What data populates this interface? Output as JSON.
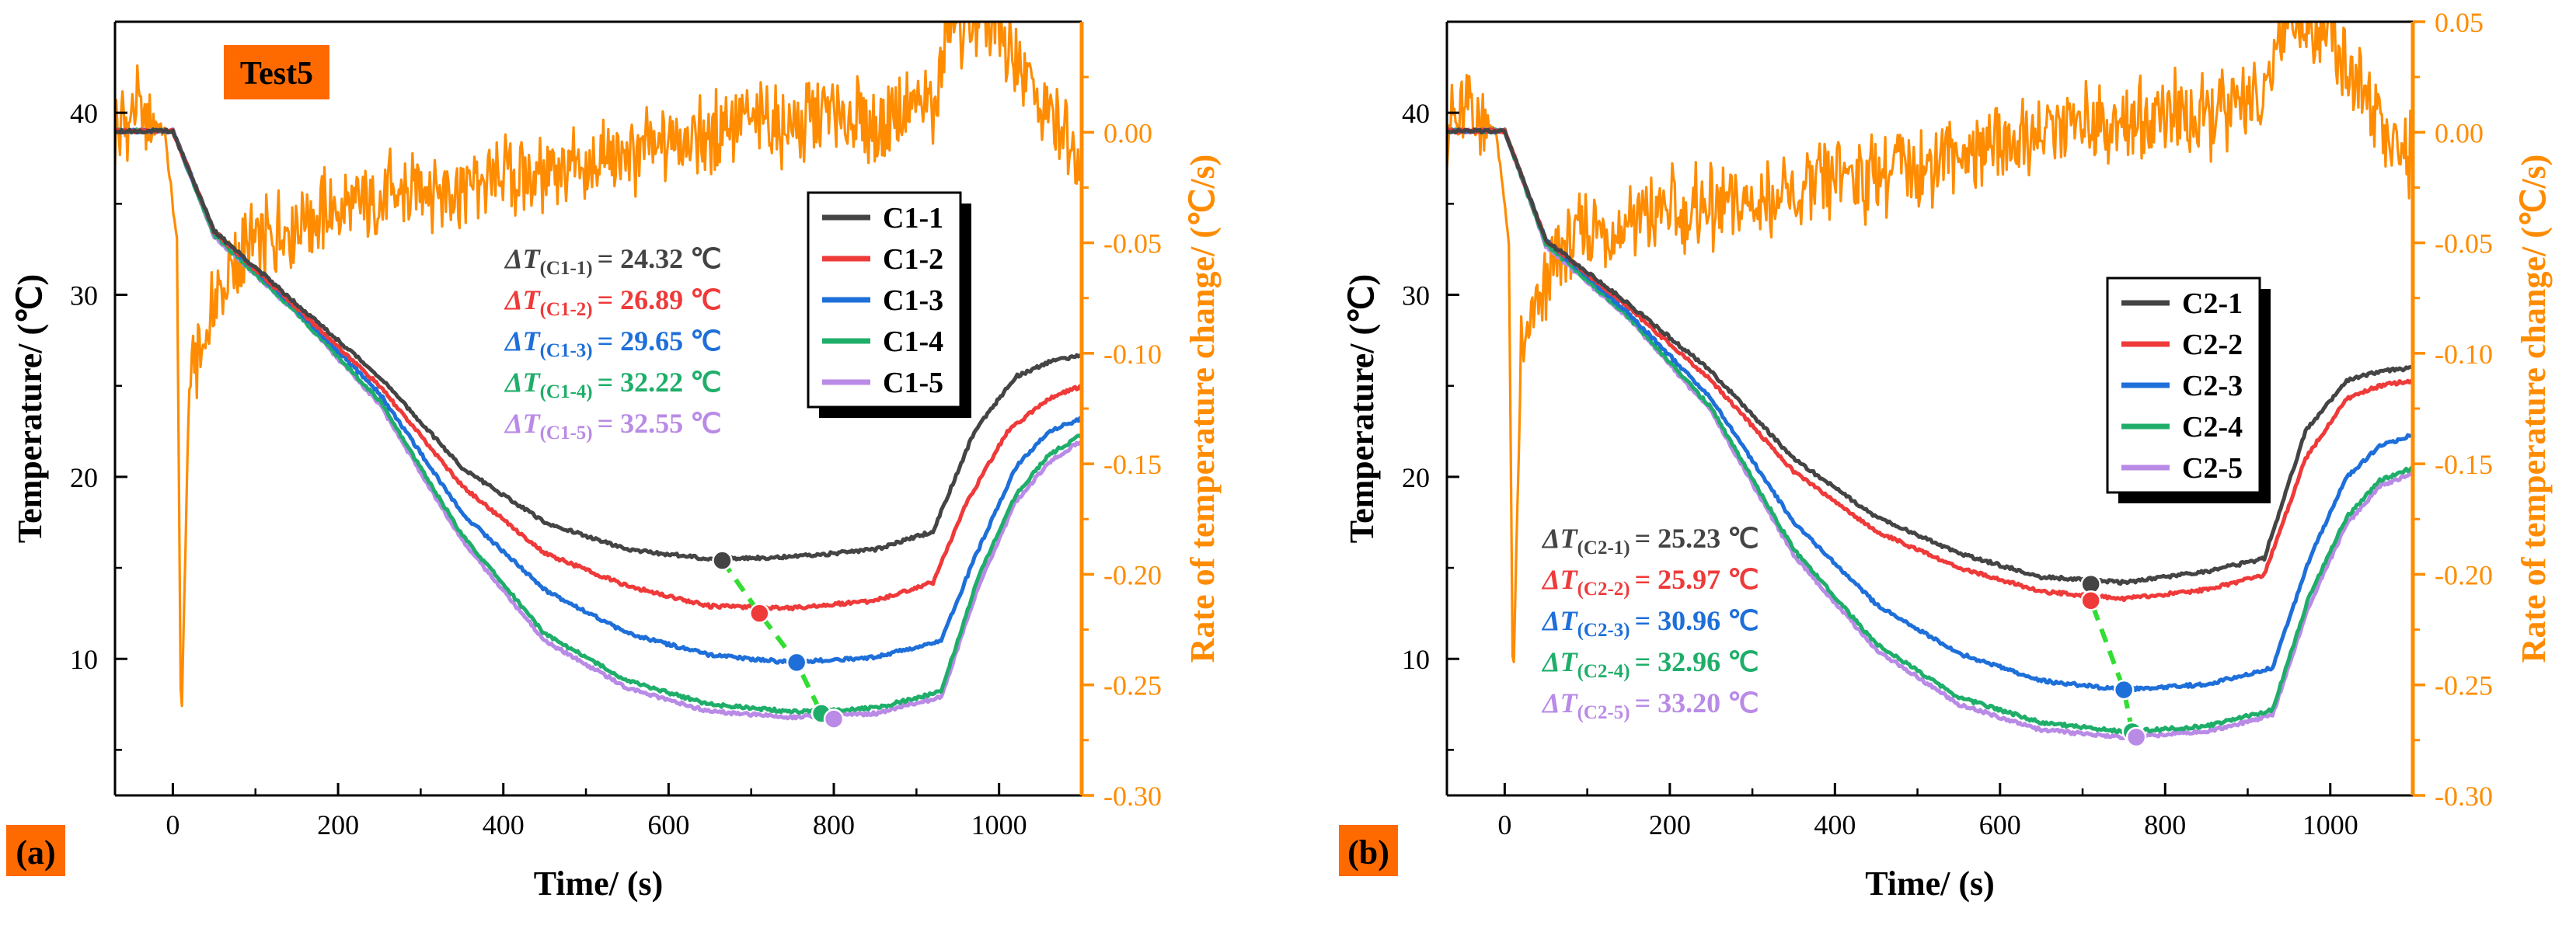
{
  "colors": {
    "axis": "#000000",
    "rate": "#ff8c00",
    "c1": "#444444",
    "c2": "#ef3a3a",
    "c3": "#1e6fd9",
    "c4": "#1fae6a",
    "c5": "#b98ae6",
    "trend": "#33dd33",
    "tag": "#ff6a00"
  },
  "chart_data": [
    {
      "type": "line",
      "panel_label": "(a)",
      "tag": "Test5",
      "xlabel": "Time/ (s)",
      "ylabel": "Temperature/ (℃)",
      "y2label": "Rate of temperature change/ (℃/s)",
      "xlim": [
        -70,
        1100
      ],
      "ylim": [
        2.5,
        45
      ],
      "y2lim": [
        -0.3,
        0.05
      ],
      "xticks": [
        0,
        200,
        400,
        600,
        800,
        1000
      ],
      "yticks": [
        10,
        20,
        30,
        40
      ],
      "y2ticks": [
        -0.3,
        -0.25,
        -0.2,
        -0.15,
        -0.1,
        -0.05,
        0.0
      ],
      "x_tick_labels": [
        "0",
        "200",
        "400",
        "600",
        "800",
        "1000"
      ],
      "y_tick_labels": [
        "10",
        "20",
        "30",
        "40"
      ],
      "y2_tick_labels": [
        "-0.30",
        "-0.25",
        "-0.20",
        "-0.15",
        "-0.10",
        "-0.05",
        "0.00"
      ],
      "grid": false,
      "legend_position": "right",
      "series": [
        {
          "name": "C1-1",
          "x": [
            -70,
            0,
            50,
            150,
            250,
            350,
            450,
            550,
            650,
            750,
            850,
            920,
            970,
            1020,
            1060,
            1100
          ],
          "y": [
            39,
            39,
            33.5,
            29.5,
            25.5,
            20.5,
            17.5,
            16.0,
            15.5,
            15.6,
            16.0,
            17.0,
            22.5,
            25.5,
            26.3,
            26.7
          ]
        },
        {
          "name": "C1-2",
          "x": [
            -70,
            0,
            50,
            150,
            250,
            350,
            450,
            550,
            650,
            750,
            850,
            920,
            960,
            1010,
            1060,
            1100
          ],
          "y": [
            39,
            39,
            33.5,
            29.3,
            25.0,
            19.5,
            15.8,
            14.0,
            12.9,
            12.8,
            13.2,
            14.2,
            18.5,
            22.5,
            24.3,
            25.0
          ]
        },
        {
          "name": "C1-3",
          "x": [
            -70,
            0,
            50,
            150,
            250,
            350,
            450,
            550,
            650,
            750,
            850,
            930,
            970,
            1020,
            1060,
            1100
          ],
          "y": [
            39,
            39,
            33.5,
            29.2,
            24.6,
            18.0,
            13.8,
            11.4,
            10.2,
            9.8,
            10.1,
            11.0,
            15.5,
            20.5,
            22.5,
            23.2
          ]
        },
        {
          "name": "C1-4",
          "x": [
            -70,
            0,
            50,
            150,
            250,
            350,
            450,
            550,
            650,
            750,
            850,
            930,
            975,
            1020,
            1060,
            1100
          ],
          "y": [
            39,
            39,
            33.3,
            29.0,
            24.2,
            16.8,
            11.4,
            8.8,
            7.5,
            7.1,
            7.3,
            8.2,
            14.5,
            19.0,
            21.2,
            22.3
          ]
        },
        {
          "name": "C1-5",
          "x": [
            -70,
            0,
            50,
            150,
            250,
            350,
            450,
            550,
            650,
            750,
            850,
            930,
            975,
            1020,
            1060,
            1100
          ],
          "y": [
            39,
            39,
            33.2,
            29.0,
            24.0,
            16.5,
            11.0,
            8.4,
            7.1,
            6.8,
            7.0,
            7.9,
            14.0,
            18.6,
            20.8,
            22.0
          ]
        },
        {
          "name": "Rate",
          "axis": "right",
          "x": [
            -70,
            -40,
            -10,
            5,
            10,
            20,
            40,
            60,
            100,
            150,
            200,
            250,
            300,
            350,
            400,
            450,
            500,
            550,
            600,
            650,
            700,
            750,
            800,
            850,
            900,
            920,
            940,
            960,
            1000,
            1040,
            1070,
            1100
          ],
          "y": [
            0.0,
            0.01,
            0.0,
            -0.05,
            -0.275,
            -0.11,
            -0.09,
            -0.07,
            -0.05,
            -0.04,
            -0.035,
            -0.03,
            -0.025,
            -0.025,
            -0.02,
            -0.02,
            -0.015,
            -0.01,
            -0.005,
            0.0,
            0.005,
            0.0,
            0.01,
            0.0,
            0.015,
            0.01,
            0.05,
            0.05,
            0.045,
            0.02,
            0.0,
            -0.01
          ]
        }
      ],
      "delta_labels": [
        {
          "prefix": "ΔT",
          "sub": "(C1-1)",
          "value": "= 24.32 ℃"
        },
        {
          "prefix": "ΔT",
          "sub": "(C1-2)",
          "value": "= 26.89 ℃"
        },
        {
          "prefix": "ΔT",
          "sub": "(C1-3)",
          "value": "= 29.65 ℃"
        },
        {
          "prefix": "ΔT",
          "sub": "(C1-4)",
          "value": "= 32.22 ℃"
        },
        {
          "prefix": "ΔT",
          "sub": "(C1-5)",
          "value": "= 32.55 ℃"
        }
      ],
      "min_points": [
        {
          "x": 665,
          "y": 15.4
        },
        {
          "x": 710,
          "y": 12.5
        },
        {
          "x": 755,
          "y": 9.8
        },
        {
          "x": 785,
          "y": 7.0
        },
        {
          "x": 800,
          "y": 6.7
        }
      ]
    },
    {
      "type": "line",
      "panel_label": "(b)",
      "xlabel": "Time/ (s)",
      "ylabel": "Temperature/ (℃)",
      "y2label": "Rate of temperature change/ (℃/s)",
      "xlim": [
        -70,
        1100
      ],
      "ylim": [
        2.5,
        45
      ],
      "y2lim": [
        -0.3,
        0.05
      ],
      "xticks": [
        0,
        200,
        400,
        600,
        800,
        1000
      ],
      "yticks": [
        10,
        20,
        30,
        40
      ],
      "y2ticks": [
        -0.3,
        -0.25,
        -0.2,
        -0.15,
        -0.1,
        -0.05,
        0.0,
        0.05
      ],
      "x_tick_labels": [
        "0",
        "200",
        "400",
        "600",
        "800",
        "1000"
      ],
      "y_tick_labels": [
        "10",
        "20",
        "30",
        "40"
      ],
      "y2_tick_labels": [
        "-0.30",
        "-0.25",
        "-0.20",
        "-0.15",
        "-0.10",
        "-0.05",
        "0.00",
        "0.05"
      ],
      "grid": false,
      "legend_position": "right",
      "series": [
        {
          "name": "C2-1",
          "x": [
            -70,
            0,
            50,
            150,
            250,
            350,
            450,
            550,
            650,
            750,
            850,
            920,
            970,
            1020,
            1060,
            1100
          ],
          "y": [
            39,
            39,
            33.0,
            29.5,
            25.8,
            21.0,
            17.8,
            15.8,
            14.5,
            14.2,
            14.8,
            15.5,
            22.5,
            25.3,
            25.8,
            26.0
          ]
        },
        {
          "name": "C2-2",
          "x": [
            -70,
            0,
            50,
            150,
            250,
            350,
            450,
            550,
            650,
            750,
            850,
            920,
            970,
            1020,
            1060,
            1100
          ],
          "y": [
            39,
            39,
            33.0,
            29.3,
            25.3,
            20.3,
            17.0,
            15.0,
            13.7,
            13.3,
            13.8,
            14.6,
            21.0,
            24.3,
            25.0,
            25.3
          ]
        },
        {
          "name": "C2-3",
          "x": [
            -70,
            0,
            50,
            150,
            250,
            350,
            450,
            550,
            650,
            750,
            850,
            930,
            975,
            1020,
            1060,
            1100
          ],
          "y": [
            39,
            39,
            33.0,
            29.0,
            24.3,
            17.5,
            13.0,
            10.3,
            8.8,
            8.3,
            8.6,
            9.5,
            15.5,
            20.0,
            21.7,
            22.3
          ]
        },
        {
          "name": "C2-4",
          "x": [
            -70,
            0,
            50,
            150,
            250,
            350,
            450,
            550,
            650,
            750,
            850,
            930,
            975,
            1020,
            1060,
            1100
          ],
          "y": [
            39,
            39,
            32.8,
            28.8,
            23.8,
            16.0,
            10.8,
            7.9,
            6.5,
            6.0,
            6.3,
            7.2,
            13.5,
            17.8,
            19.8,
            20.5
          ]
        },
        {
          "name": "C2-5",
          "x": [
            -70,
            0,
            50,
            150,
            250,
            350,
            450,
            550,
            650,
            750,
            850,
            930,
            975,
            1020,
            1060,
            1100
          ],
          "y": [
            39,
            39,
            32.7,
            28.7,
            23.6,
            15.7,
            10.5,
            7.5,
            6.1,
            5.7,
            6.0,
            6.9,
            13.0,
            17.4,
            19.5,
            20.2
          ]
        },
        {
          "name": "Rate",
          "axis": "right",
          "x": [
            -70,
            -40,
            -10,
            5,
            10,
            20,
            40,
            60,
            100,
            150,
            200,
            250,
            300,
            350,
            400,
            450,
            500,
            550,
            600,
            650,
            700,
            750,
            800,
            850,
            900,
            920,
            940,
            960,
            1000,
            1040,
            1070,
            1100
          ],
          "y": [
            0.0,
            0.01,
            0.0,
            -0.05,
            -0.255,
            -0.1,
            -0.08,
            -0.06,
            -0.045,
            -0.04,
            -0.035,
            -0.035,
            -0.03,
            -0.03,
            -0.02,
            -0.02,
            -0.015,
            -0.01,
            -0.005,
            0.0,
            0.005,
            0.005,
            0.01,
            0.005,
            0.015,
            0.01,
            0.05,
            0.05,
            0.045,
            0.015,
            0.0,
            -0.01
          ]
        }
      ],
      "delta_labels": [
        {
          "prefix": "ΔT",
          "sub": "(C2-1)",
          "value": "= 25.23 ℃"
        },
        {
          "prefix": "ΔT",
          "sub": "(C2-2)",
          "value": "= 25.97 ℃"
        },
        {
          "prefix": "ΔT",
          "sub": "(C2-3)",
          "value": "= 30.96 ℃"
        },
        {
          "prefix": "ΔT",
          "sub": "(C2-4)",
          "value": "= 32.96 ℃"
        },
        {
          "prefix": "ΔT",
          "sub": "(C2-5)",
          "value": "= 33.20 ℃"
        }
      ],
      "min_points": [
        {
          "x": 710,
          "y": 14.1
        },
        {
          "x": 710,
          "y": 13.2
        },
        {
          "x": 750,
          "y": 8.3
        },
        {
          "x": 760,
          "y": 6.0
        },
        {
          "x": 765,
          "y": 5.7
        }
      ]
    }
  ]
}
